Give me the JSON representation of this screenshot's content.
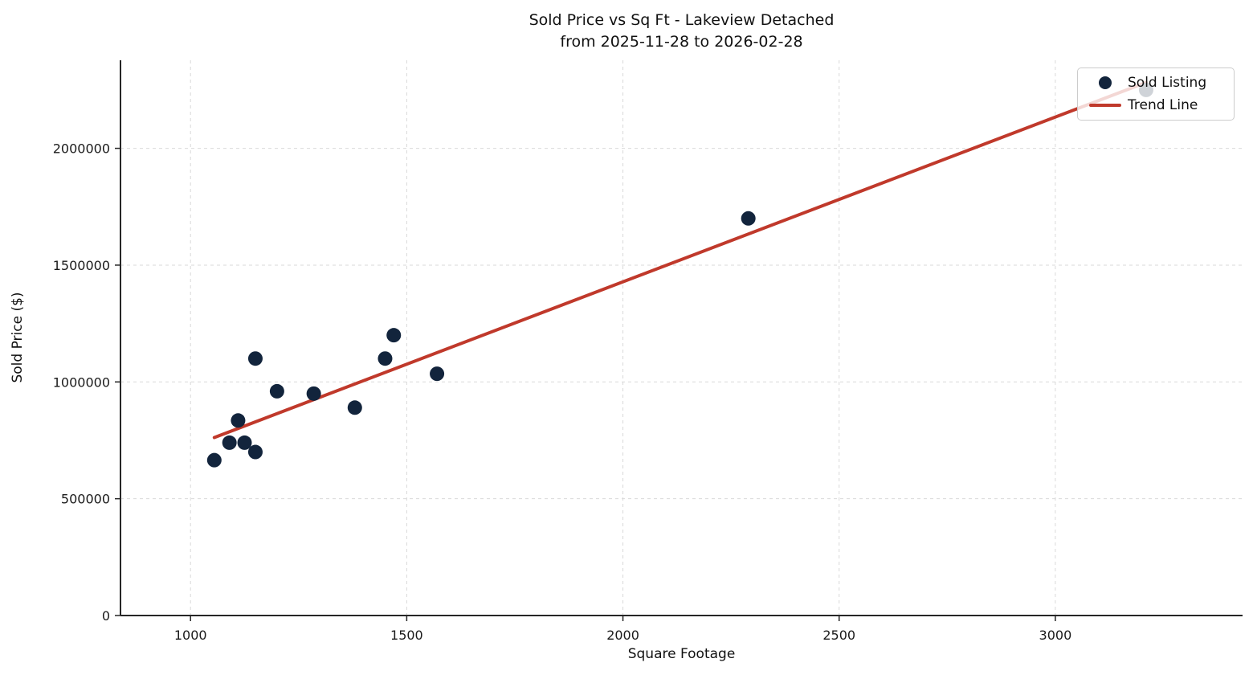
{
  "title": {
    "line1": "Sold Price vs Sq Ft - Lakeview Detached",
    "line2": "from 2025-11-28 to 2026-02-28"
  },
  "chart_data": {
    "type": "scatter",
    "title": "Sold Price vs Sq Ft - Lakeview Detached\nfrom 2025-11-28 to 2026-02-28",
    "xlabel": "Square Footage",
    "ylabel": "Sold Price ($)",
    "xlim": [
      838,
      3433
    ],
    "ylim": [
      0,
      2377000
    ],
    "x_ticks": [
      1000,
      1500,
      2000,
      2500,
      3000
    ],
    "y_ticks": [
      0,
      500000,
      1000000,
      1500000,
      2000000
    ],
    "grid": true,
    "colors": {
      "scatter": "#12243c",
      "trend": "#c0392b",
      "gridline": "#d9d9d9",
      "axis": "#262626"
    },
    "legend": {
      "position": "upper right",
      "entries": [
        {
          "label": "Sold Listing",
          "type": "marker",
          "color": "#12243c"
        },
        {
          "label": "Trend Line",
          "type": "line",
          "color": "#c0392b"
        }
      ]
    },
    "series": [
      {
        "name": "Sold Listing",
        "type": "scatter",
        "color": "#12243c",
        "points": [
          [
            1055,
            665000
          ],
          [
            1090,
            740000
          ],
          [
            1110,
            835000
          ],
          [
            1125,
            740000
          ],
          [
            1150,
            700000
          ],
          [
            1150,
            1100000
          ],
          [
            1200,
            960000
          ],
          [
            1285,
            950000
          ],
          [
            1380,
            890000
          ],
          [
            1450,
            1100000
          ],
          [
            1470,
            1200000
          ],
          [
            1570,
            1035000
          ],
          [
            2290,
            1700000
          ],
          [
            3210,
            2250000
          ]
        ]
      },
      {
        "name": "Trend Line",
        "type": "line",
        "color": "#c0392b",
        "points": [
          [
            1055,
            762000
          ],
          [
            3210,
            2282000
          ]
        ]
      }
    ]
  }
}
